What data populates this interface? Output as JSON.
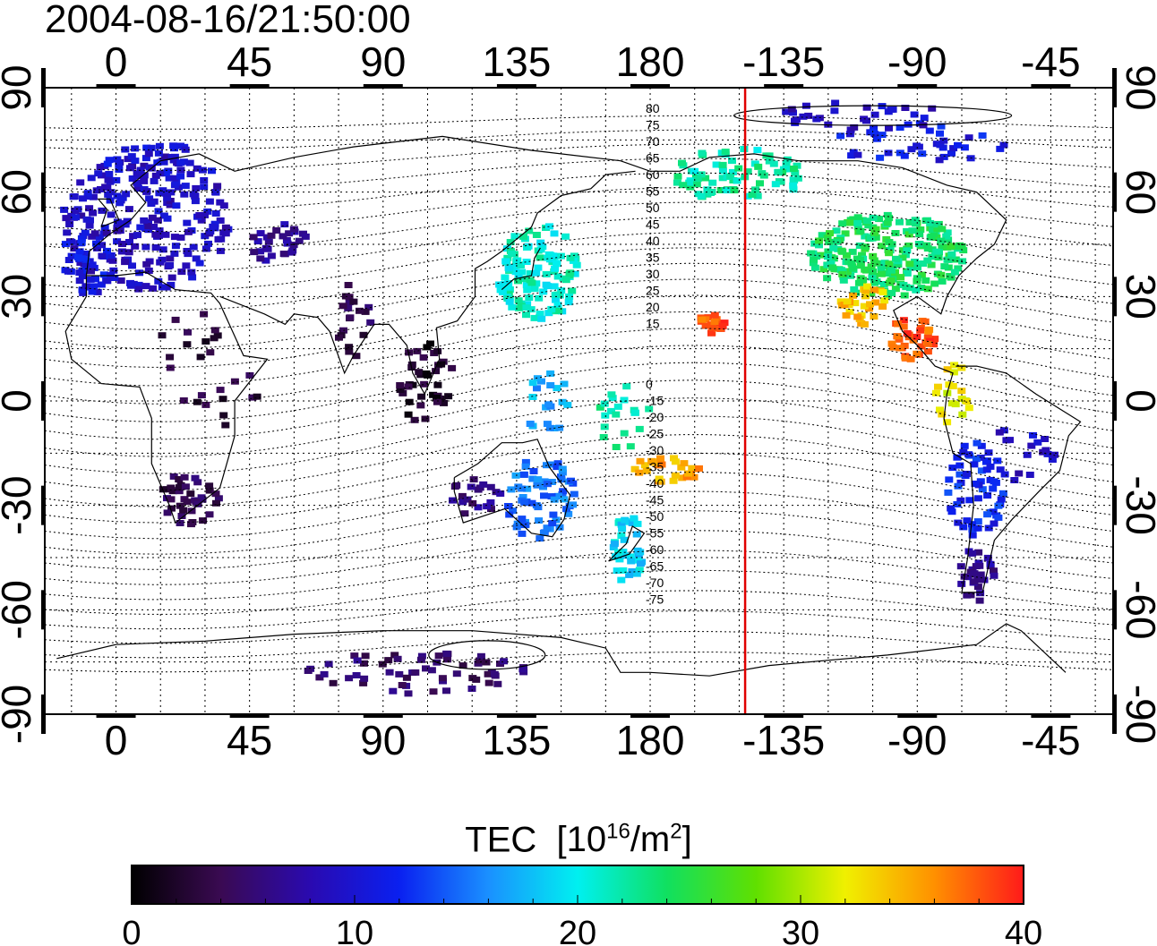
{
  "timestamp": "2004-08-16/21:50:00",
  "map": {
    "projection": "equirectangular",
    "x_ticks": [
      "0",
      "45",
      "90",
      "135",
      "180",
      "-135",
      "-90",
      "-45"
    ],
    "y_ticks_left": [
      "90",
      "60",
      "30",
      "0",
      "-30",
      "-60",
      "-90"
    ],
    "y_ticks_right": [
      "90",
      "60",
      "30",
      "0",
      "-30",
      "-60",
      "-90"
    ],
    "longitude_range": [
      -24,
      336
    ],
    "latitude_range": [
      -90,
      90
    ],
    "grid_lines": "dotted, every 15 degrees",
    "highlight_meridian": {
      "longitude": -148,
      "color": "#e00000"
    },
    "contour_labels": [
      "80",
      "75",
      "70",
      "65",
      "60",
      "55",
      "50",
      "45",
      "40",
      "35",
      "30",
      "25",
      "20",
      "15",
      "0",
      "-15",
      "-20",
      "-25",
      "-30",
      "-35",
      "-40",
      "-45",
      "-50",
      "-55",
      "-60",
      "-65",
      "-70",
      "-75"
    ]
  },
  "colorbar": {
    "title": "TEC",
    "unit_prefix": "[10",
    "unit_exp": "16",
    "unit_mid": "/m",
    "unit_exp2": "2",
    "unit_suffix": "]",
    "min": 0,
    "max": 40,
    "tick_labels": [
      "0",
      "10",
      "20",
      "30",
      "40"
    ],
    "colors": [
      "#000000",
      "#3a0a52",
      "#2a0ab0",
      "#0a20f0",
      "#1a90ff",
      "#00f0f0",
      "#10e060",
      "#60e000",
      "#f0f000",
      "#ff9000",
      "#ff1a1a"
    ]
  }
}
